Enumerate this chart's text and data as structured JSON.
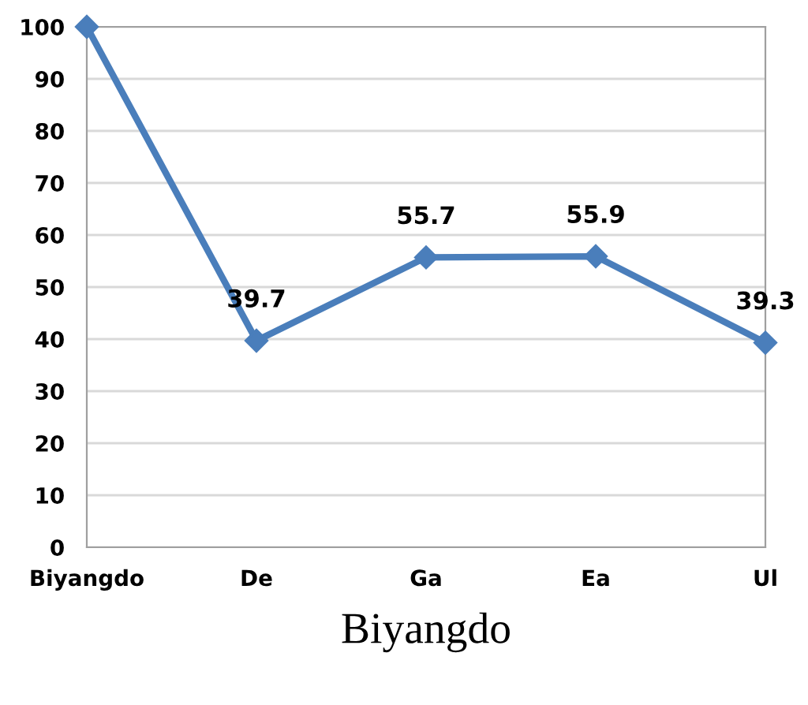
{
  "chart_data": {
    "type": "line",
    "xlabel": "Biyangdo",
    "categories": [
      "Biyangdo",
      "De",
      "Ga",
      "Ea",
      "Ul"
    ],
    "series": [
      {
        "color": "#4a7ebb",
        "values": [
          100,
          39.7,
          55.7,
          55.9,
          39.3
        ],
        "value_labels": [
          null,
          "39.7",
          "55.7",
          "55.9",
          "39.3"
        ]
      }
    ],
    "ylim": [
      0,
      100
    ],
    "yticks": [
      0,
      10,
      20,
      30,
      40,
      50,
      60,
      70,
      80,
      90,
      100
    ],
    "grid": "y",
    "marker": "diamond",
    "line_style": "solid",
    "legend": false
  }
}
